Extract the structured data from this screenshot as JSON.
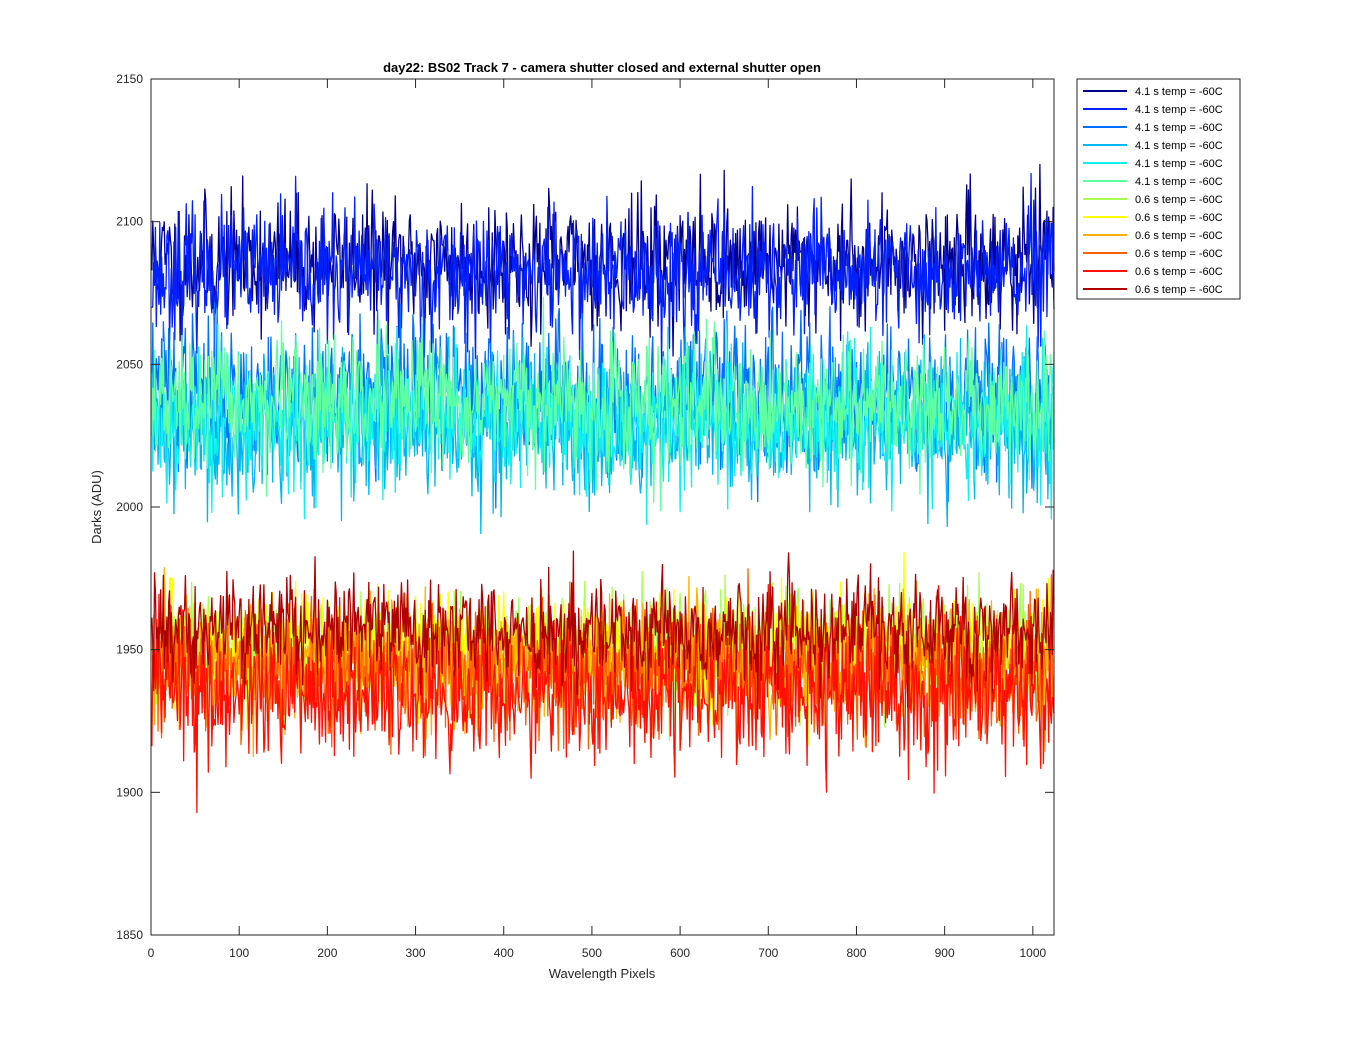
{
  "chart_data": {
    "type": "line",
    "title": "day22: BS02  Track 7 - camera shutter closed and external shutter open",
    "xlabel": "Wavelength Pixels",
    "ylabel": "Darks (ADU)",
    "xlim": [
      0,
      1024
    ],
    "ylim": [
      1850,
      2150
    ],
    "xticks": [
      0,
      100,
      200,
      300,
      400,
      500,
      600,
      700,
      800,
      900,
      1000
    ],
    "yticks": [
      1850,
      1900,
      1950,
      2000,
      2050,
      2100,
      2150
    ],
    "grid": false,
    "legend_position": "outside-top-right",
    "x_points": 1024,
    "series": [
      {
        "name": "4.1 s temp = -60C",
        "color": "#00008f",
        "mean": 2086,
        "noise": 11,
        "seed": 11
      },
      {
        "name": "4.1 s temp = -60C",
        "color": "#0020ff",
        "mean": 2082,
        "noise": 11,
        "seed": 23
      },
      {
        "name": "4.1 s temp = -60C",
        "color": "#0070ff",
        "mean": 2040,
        "noise": 13,
        "seed": 37
      },
      {
        "name": "4.1 s temp = -60C",
        "color": "#00b8f0",
        "mean": 2028,
        "noise": 13,
        "seed": 41
      },
      {
        "name": "4.1 s temp = -60C",
        "color": "#10f0f0",
        "mean": 2030,
        "noise": 12,
        "seed": 53
      },
      {
        "name": "4.1 s temp = -60C",
        "color": "#60ffa0",
        "mean": 2036,
        "noise": 11,
        "seed": 67
      },
      {
        "name": "0.6 s temp = -60C",
        "color": "#a8ff50",
        "mean": 1950,
        "noise": 10,
        "seed": 71
      },
      {
        "name": "0.6 s temp = -60C",
        "color": "#ffff00",
        "mean": 1950,
        "noise": 10,
        "seed": 83
      },
      {
        "name": "0.6 s temp = -60C",
        "color": "#ffb000",
        "mean": 1945,
        "noise": 11,
        "seed": 97
      },
      {
        "name": "0.6 s temp = -60C",
        "color": "#ff6000",
        "mean": 1943,
        "noise": 11,
        "seed": 101
      },
      {
        "name": "0.6 s temp = -60C",
        "color": "#ff1000",
        "mean": 1935,
        "noise": 12,
        "seed": 113
      },
      {
        "name": "0.6 s temp = -60C",
        "color": "#b00000",
        "mean": 1957,
        "noise": 9,
        "seed": 127
      }
    ]
  }
}
